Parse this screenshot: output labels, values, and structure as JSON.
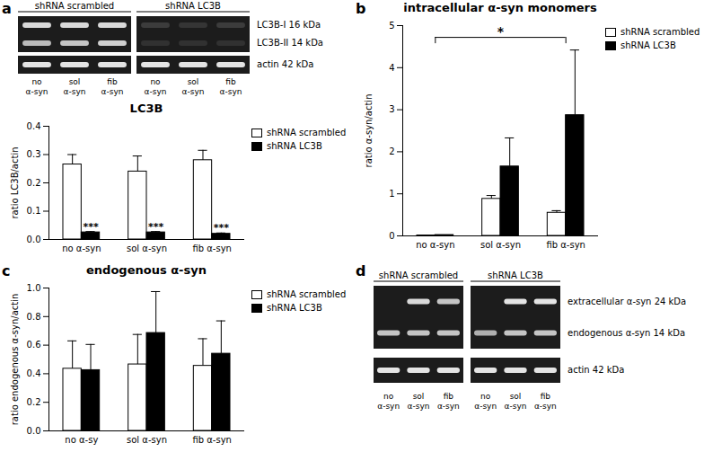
{
  "chart_data": [
    {
      "type": "bar",
      "title": "LC3B",
      "y_label": "ratio LC3B/actin",
      "categories": [
        "no α-syn",
        "sol α-syn",
        "fib α-syn"
      ],
      "series": [
        {
          "name": "shRNA scrambled",
          "color": "#ffffff",
          "values": [
            0.265,
            0.24,
            0.28
          ],
          "errors": [
            0.035,
            0.055,
            0.035
          ]
        },
        {
          "name": "shRNA LC3B",
          "color": "#000000",
          "values": [
            0.025,
            0.025,
            0.02
          ],
          "errors": [
            0.003,
            0.003,
            0.003
          ]
        }
      ],
      "ylim": [
        0,
        0.4
      ],
      "yticks": [
        {
          "value": 0,
          "label": "0.0"
        },
        0.1,
        0.2,
        0.3,
        0.4
      ],
      "legend": "top-right",
      "annotations": [
        {
          "text": "***",
          "series": "shRNA LC3B",
          "category": "no α-syn"
        },
        {
          "text": "***",
          "series": "shRNA LC3B",
          "category": "sol α-syn"
        },
        {
          "text": "***",
          "series": "shRNA LC3B",
          "category": "fib α-syn"
        }
      ]
    },
    {
      "type": "bar",
      "panel": "b",
      "title": "intracellular α-syn monomers",
      "y_label": "ratio α-syn/actin",
      "categories": [
        "no α-syn",
        "sol α-syn",
        "fib α-syn"
      ],
      "series": [
        {
          "name": "shRNA scrambled",
          "color": "#ffffff",
          "values": [
            0.01,
            0.88,
            0.55
          ],
          "errors": [
            null,
            0.08,
            0.05
          ]
        },
        {
          "name": "shRNA LC3B",
          "color": "#000000",
          "values": [
            0.02,
            1.65,
            2.87
          ],
          "errors": [
            null,
            0.68,
            1.55
          ]
        }
      ],
      "ylim": [
        0,
        5
      ],
      "yticks": [
        0,
        1,
        2,
        3,
        4,
        5
      ],
      "legend": "top-right",
      "annotations": [
        {
          "text": "*",
          "from": "no α-syn",
          "to": "fib α-syn"
        }
      ]
    },
    {
      "type": "bar",
      "panel": "c",
      "title": "endogenous α-syn",
      "y_label": "ratio endogenous α-syn/actin",
      "categories": [
        "no α-sy",
        "sol α-syn",
        "fib α-syn"
      ],
      "series": [
        {
          "name": "shRNA scrambled",
          "color": "#ffffff",
          "values": [
            0.435,
            0.465,
            0.455
          ],
          "errors": [
            0.195,
            0.21,
            0.19
          ]
        },
        {
          "name": "shRNA LC3B",
          "color": "#000000",
          "values": [
            0.425,
            0.685,
            0.54
          ],
          "errors": [
            0.18,
            0.29,
            0.23
          ]
        }
      ],
      "ylim": [
        0,
        1
      ],
      "yticks": [
        {
          "value": 0,
          "label": "0.0"
        },
        0.2,
        0.4,
        0.6,
        0.8,
        {
          "value": 1,
          "label": "1.0"
        }
      ],
      "legend": "top-right"
    }
  ],
  "blots": [
    {
      "panel": "a",
      "groups": [
        {
          "name": "shRNA scrambled",
          "lanes": [
            "no α-syn",
            "sol α-syn",
            "fib α-syn"
          ]
        },
        {
          "name": "shRNA LC3B",
          "lanes": [
            "no α-syn",
            "sol α-syn",
            "fib α-syn"
          ]
        }
      ],
      "membranes": [
        {
          "bands": [
            {
              "label": "LC3B-I 16 kDa",
              "signal": [
                [
                  0.9,
                  0.9,
                  0.9
                ],
                [
                  0.15,
                  0.12,
                  0.15
                ]
              ]
            },
            {
              "label": "LC3B-II 14 kDa",
              "signal": [
                [
                  0.75,
                  0.8,
                  0.85
                ],
                [
                  0.1,
                  0.1,
                  0.1
                ]
              ]
            }
          ]
        },
        {
          "bands": [
            {
              "label": "actin 42 kDa",
              "signal": [
                [
                  0.95,
                  0.95,
                  0.95
                ],
                [
                  0.95,
                  0.95,
                  0.95
                ]
              ]
            }
          ]
        }
      ]
    },
    {
      "panel": "d",
      "groups": [
        {
          "name": "shRNA scrambled",
          "lanes": [
            "no α-syn",
            "sol α-syn",
            "fib α-syn"
          ]
        },
        {
          "name": "shRNA LC3B",
          "lanes": [
            "no α-syn",
            "sol α-syn",
            "fib α-syn"
          ]
        }
      ],
      "membranes": [
        {
          "bands": [
            {
              "label": "extracellular α-syn 24 kDa",
              "signal": [
                [
                  0,
                  0.9,
                  0.8
                ],
                [
                  0,
                  0.95,
                  0.95
                ]
              ]
            },
            {
              "label": "endogenous α-syn 14 kDa",
              "signal": [
                [
                  0.8,
                  0.8,
                  0.8
                ],
                [
                  0.7,
                  0.8,
                  0.8
                ]
              ]
            }
          ]
        },
        {
          "bands": [
            {
              "label": "actin 42 kDa",
              "signal": [
                [
                  0.95,
                  0.95,
                  0.95
                ],
                [
                  0.95,
                  0.95,
                  0.95
                ]
              ]
            }
          ]
        }
      ]
    }
  ]
}
